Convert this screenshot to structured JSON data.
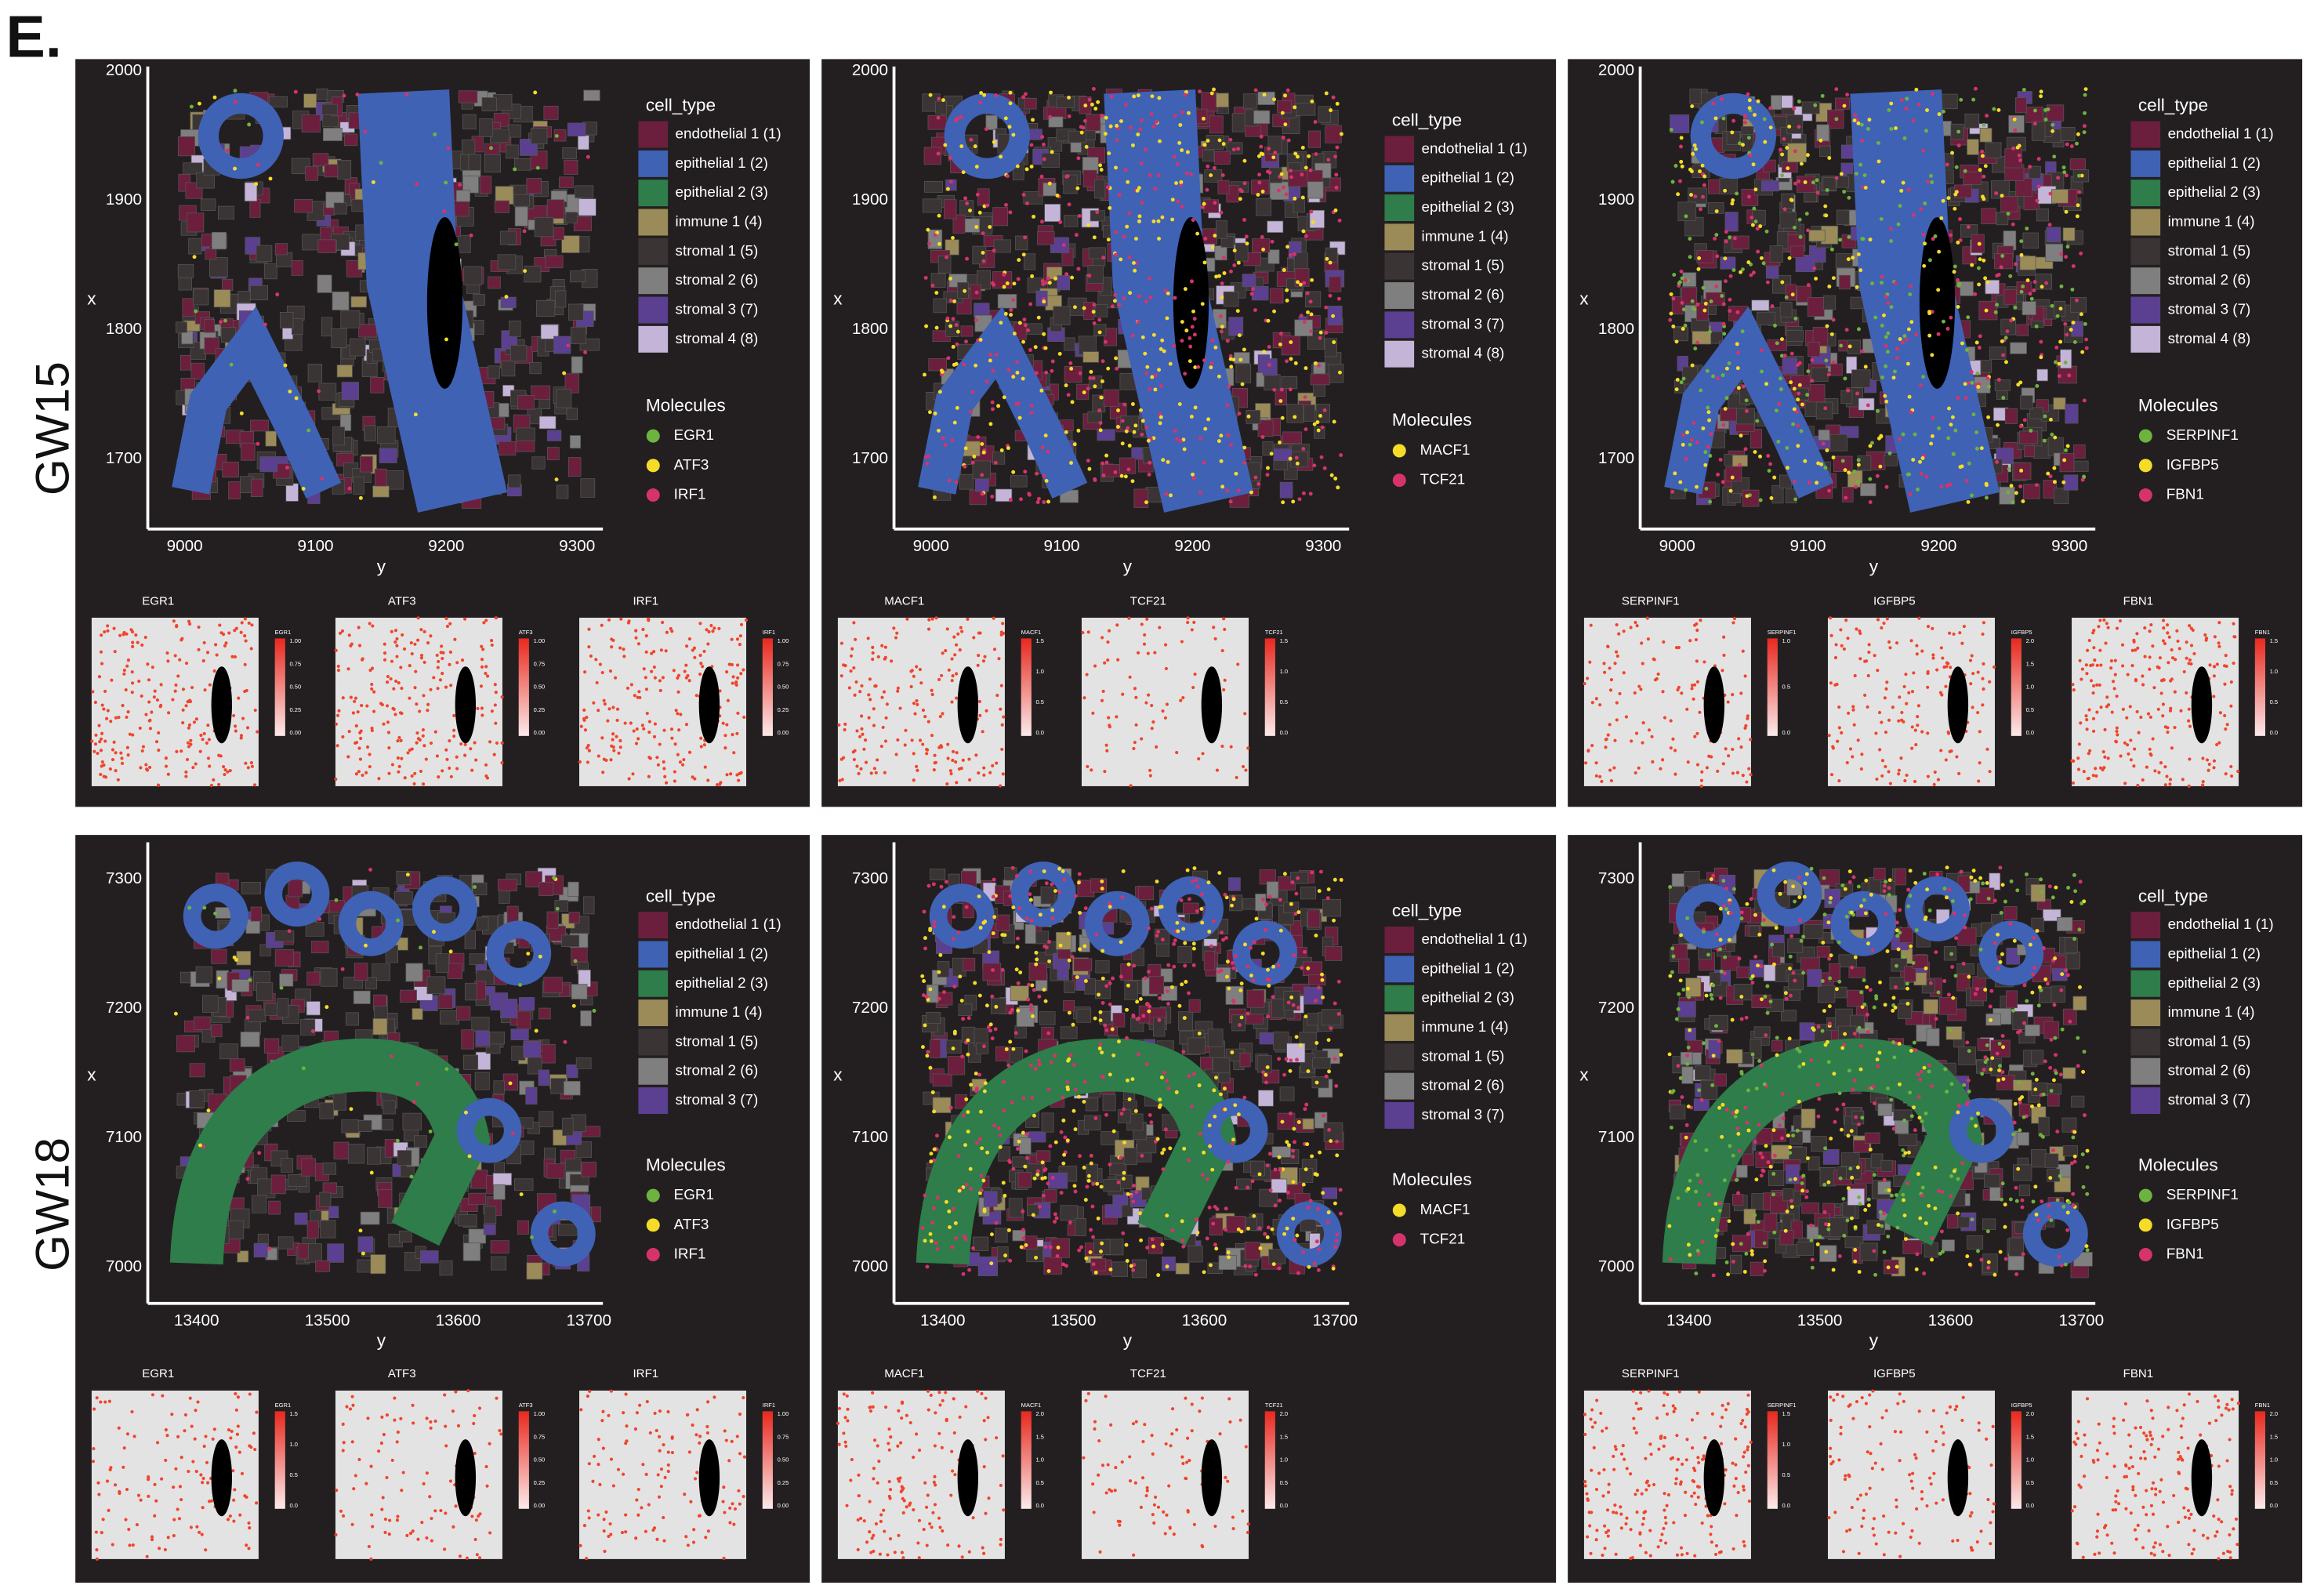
{
  "panel_label": "E.",
  "colors": {
    "cell_types": [
      "#6b1f3d",
      "#3f62b5",
      "#2e7d4a",
      "#9b8b58",
      "#3a3434",
      "#7f7f7f",
      "#5b3f91",
      "#c4b5d8"
    ],
    "panel_background": "#231f20",
    "minimap_tissue": "#e3e3e3",
    "minimap_dot": "#f0442c"
  },
  "rows": [
    {
      "label": "GW15",
      "x_label": "y",
      "y_label": "x",
      "y_ticks": [
        "2000",
        "1900",
        "1800",
        "1700"
      ],
      "x_ticks": [
        "9000",
        "9100",
        "9200",
        "9300"
      ],
      "cell_type_legend": {
        "title": "cell_type",
        "items": [
          "endothelial 1 (1)",
          "epithelial 1 (2)",
          "epithelial 2 (3)",
          "immune 1 (4)",
          "stromal 1 (5)",
          "stromal 2 (6)",
          "stromal 3 (7)",
          "stromal 4 (8)"
        ]
      },
      "panels": [
        {
          "molecules": {
            "title": "Molecules",
            "items": [
              {
                "label": "EGR1",
                "color": "#6db33f"
              },
              {
                "label": "ATF3",
                "color": "#f5dc28"
              },
              {
                "label": "IRF1",
                "color": "#d6336c"
              }
            ]
          },
          "minimaps": [
            {
              "title": "EGR1",
              "scale": [
                "1.00",
                "0.75",
                "0.50",
                "0.25",
                "0.00"
              ]
            },
            {
              "title": "ATF3",
              "scale": [
                "1.00",
                "0.75",
                "0.50",
                "0.25",
                "0.00"
              ]
            },
            {
              "title": "IRF1",
              "scale": [
                "1.00",
                "0.75",
                "0.50",
                "0.25",
                "0.00"
              ]
            }
          ]
        },
        {
          "molecules": {
            "title": "Molecules",
            "items": [
              {
                "label": "MACF1",
                "color": "#f5dc28"
              },
              {
                "label": "TCF21",
                "color": "#d6336c"
              }
            ]
          },
          "minimaps": [
            {
              "title": "MACF1",
              "scale": [
                "1.5",
                "1.0",
                "0.5",
                "0.0"
              ]
            },
            {
              "title": "TCF21",
              "scale": [
                "1.5",
                "1.0",
                "0.5",
                "0.0"
              ]
            }
          ]
        },
        {
          "molecules": {
            "title": "Molecules",
            "items": [
              {
                "label": "SERPINF1",
                "color": "#6db33f"
              },
              {
                "label": "IGFBP5",
                "color": "#f5dc28"
              },
              {
                "label": "FBN1",
                "color": "#d6336c"
              }
            ]
          },
          "minimaps": [
            {
              "title": "SERPINF1",
              "scale": [
                "1.0",
                "0.5",
                "0.0"
              ]
            },
            {
              "title": "IGFBP5",
              "scale": [
                "2.0",
                "1.5",
                "1.0",
                "0.5",
                "0.0"
              ]
            },
            {
              "title": "FBN1",
              "scale": [
                "1.5",
                "1.0",
                "0.5",
                "0.0"
              ]
            }
          ]
        }
      ]
    },
    {
      "label": "GW18",
      "x_label": "y",
      "y_label": "x",
      "y_ticks": [
        "7300",
        "7200",
        "7100",
        "7000"
      ],
      "x_ticks": [
        "13400",
        "13500",
        "13600",
        "13700"
      ],
      "cell_type_legend": {
        "title": "cell_type",
        "items": [
          "endothelial 1 (1)",
          "epithelial 1 (2)",
          "epithelial 2 (3)",
          "immune 1 (4)",
          "stromal 1 (5)",
          "stromal 2 (6)",
          "stromal 3 (7)"
        ]
      },
      "panels": [
        {
          "molecules": {
            "title": "Molecules",
            "items": [
              {
                "label": "EGR1",
                "color": "#6db33f"
              },
              {
                "label": "ATF3",
                "color": "#f5dc28"
              },
              {
                "label": "IRF1",
                "color": "#d6336c"
              }
            ]
          },
          "minimaps": [
            {
              "title": "EGR1",
              "scale": [
                "1.5",
                "1.0",
                "0.5",
                "0.0"
              ]
            },
            {
              "title": "ATF3",
              "scale": [
                "1.00",
                "0.75",
                "0.50",
                "0.25",
                "0.00"
              ]
            },
            {
              "title": "IRF1",
              "scale": [
                "1.00",
                "0.75",
                "0.50",
                "0.25",
                "0.00"
              ]
            }
          ]
        },
        {
          "molecules": {
            "title": "Molecules",
            "items": [
              {
                "label": "MACF1",
                "color": "#f5dc28"
              },
              {
                "label": "TCF21",
                "color": "#d6336c"
              }
            ]
          },
          "minimaps": [
            {
              "title": "MACF1",
              "scale": [
                "2.0",
                "1.5",
                "1.0",
                "0.5",
                "0.0"
              ]
            },
            {
              "title": "TCF21",
              "scale": [
                "2.0",
                "1.5",
                "1.0",
                "0.5",
                "0.0"
              ]
            }
          ]
        },
        {
          "molecules": {
            "title": "Molecules",
            "items": [
              {
                "label": "SERPINF1",
                "color": "#6db33f"
              },
              {
                "label": "IGFBP5",
                "color": "#f5dc28"
              },
              {
                "label": "FBN1",
                "color": "#d6336c"
              }
            ]
          },
          "minimaps": [
            {
              "title": "SERPINF1",
              "scale": [
                "1.5",
                "1.0",
                "0.5",
                "0.0"
              ]
            },
            {
              "title": "IGFBP5",
              "scale": [
                "2.0",
                "1.5",
                "1.0",
                "0.5",
                "0.0"
              ]
            },
            {
              "title": "FBN1",
              "scale": [
                "2.0",
                "1.5",
                "1.0",
                "0.5",
                "0.0"
              ]
            }
          ]
        }
      ]
    }
  ]
}
